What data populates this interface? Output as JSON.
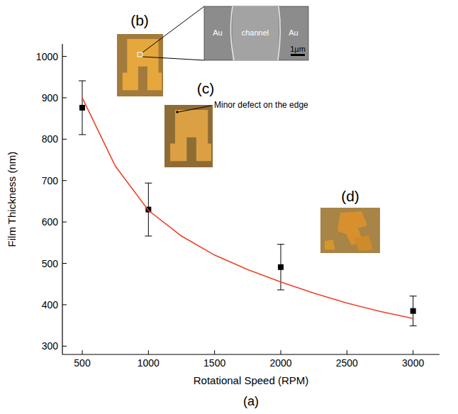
{
  "chart_data": {
    "type": "scatter",
    "x_label": "Rotational Speed (RPM)",
    "y_label": "Film Thickness (nm)",
    "xlim": [
      350,
      3200
    ],
    "xticks": [
      500,
      1000,
      1500,
      2000,
      2500,
      3000
    ],
    "ylim": [
      280,
      1030
    ],
    "yticks": [
      300,
      400,
      500,
      600,
      700,
      800,
      900,
      1000
    ],
    "grid": false,
    "series": [
      {
        "type": "scatter",
        "color": "#000000",
        "marker": "square",
        "x": [
          500,
          1000,
          2000,
          3000
        ],
        "values": [
          876,
          630,
          491,
          385
        ],
        "errors": [
          65,
          64,
          55,
          36
        ]
      },
      {
        "type": "line",
        "color": "#f0402a",
        "line_style": "solid",
        "x": [
          500,
          750,
          1000,
          1250,
          1500,
          1750,
          2000,
          2250,
          2500,
          2750,
          3000
        ],
        "values": [
          900,
          735,
          628,
          566,
          520,
          485,
          455,
          428,
          404,
          384,
          367
        ]
      }
    ],
    "annotations": [
      "(b)",
      "(c)",
      "(d)",
      "Minor defect on the edge",
      "Au",
      "channel",
      "Au",
      "1µm",
      "(a)"
    ]
  }
}
